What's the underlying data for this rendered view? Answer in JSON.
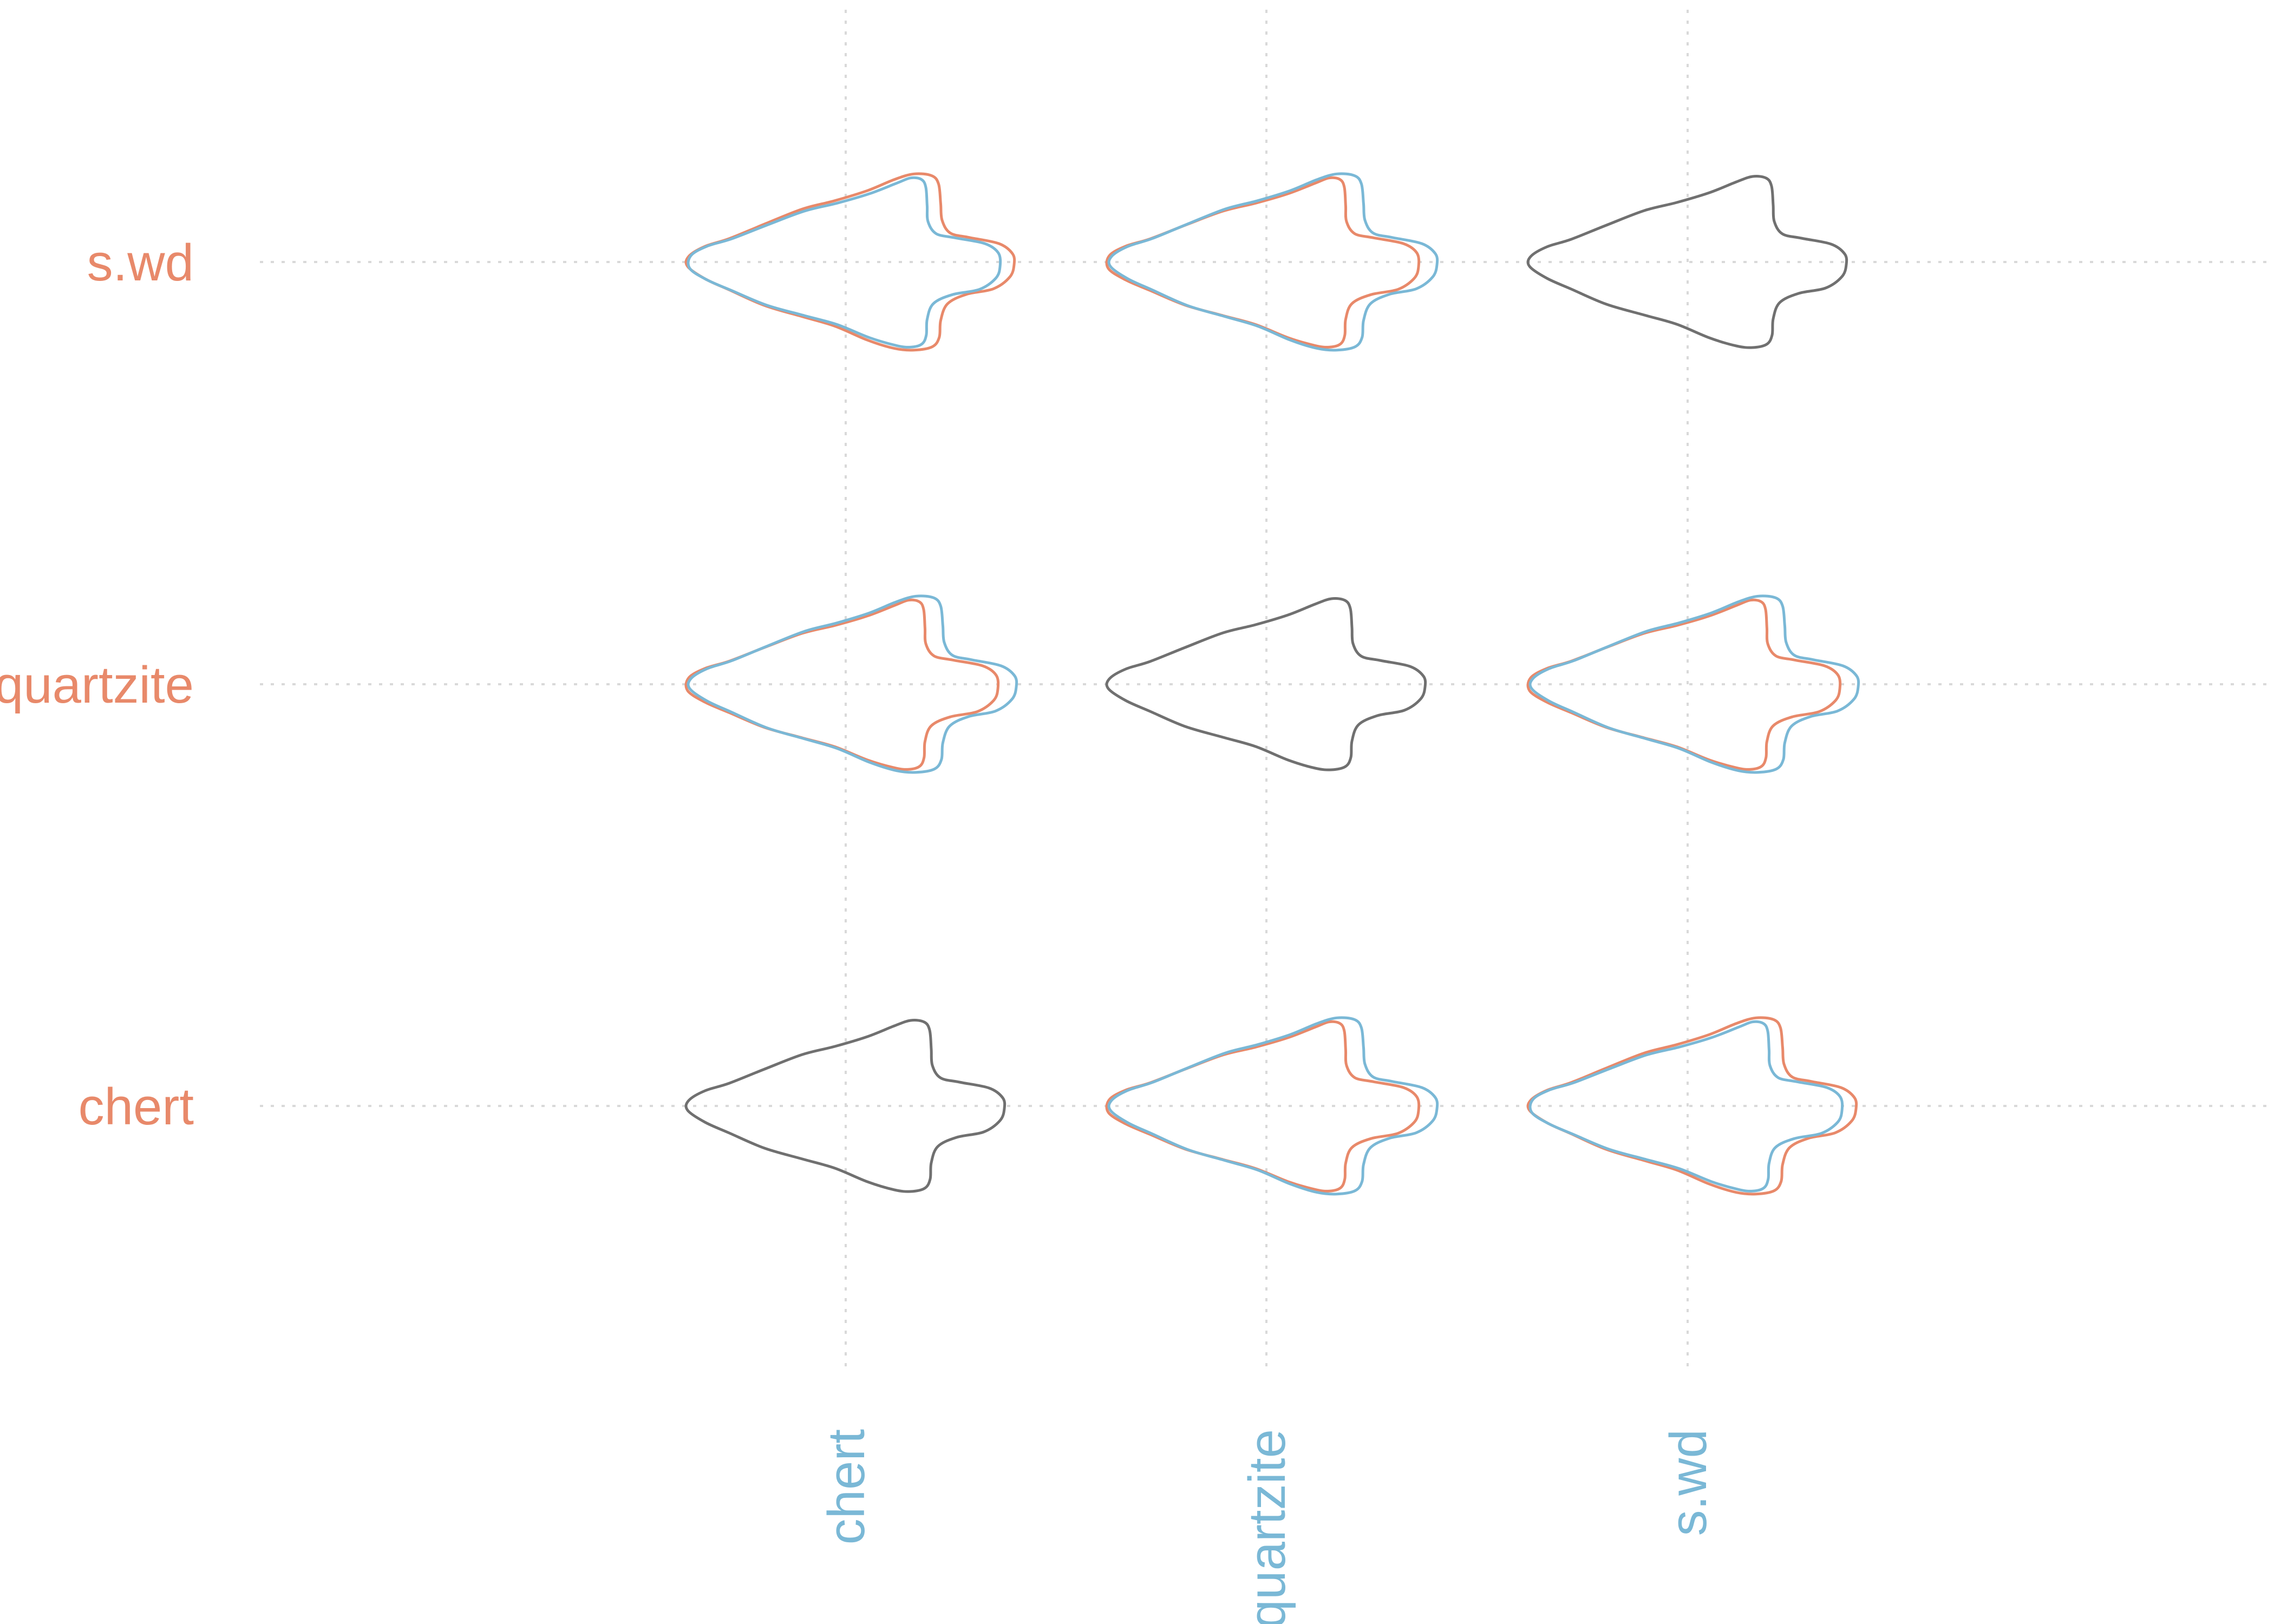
{
  "chart_data": {
    "type": "shape-comparison-matrix",
    "title": "",
    "row_categories": [
      "s.wd",
      "quartzite",
      "chert"
    ],
    "column_categories": [
      "chert",
      "quartzite",
      "s.wd"
    ],
    "grid": true,
    "cells": [
      {
        "row": "s.wd",
        "column": "chert",
        "outlines": [
          "row",
          "column"
        ]
      },
      {
        "row": "s.wd",
        "column": "quartzite",
        "outlines": [
          "row",
          "column"
        ]
      },
      {
        "row": "s.wd",
        "column": "s.wd",
        "outlines": [
          "mean"
        ]
      },
      {
        "row": "quartzite",
        "column": "chert",
        "outlines": [
          "row",
          "column"
        ]
      },
      {
        "row": "quartzite",
        "column": "quartzite",
        "outlines": [
          "mean"
        ]
      },
      {
        "row": "quartzite",
        "column": "s.wd",
        "outlines": [
          "row",
          "column"
        ]
      },
      {
        "row": "chert",
        "column": "chert",
        "outlines": [
          "mean"
        ]
      },
      {
        "row": "chert",
        "column": "quartzite",
        "outlines": [
          "row",
          "column"
        ]
      },
      {
        "row": "chert",
        "column": "s.wd",
        "outlines": [
          "row",
          "column"
        ]
      }
    ]
  },
  "colors": {
    "row_category": "#E8896A",
    "column_category": "#7AB8D6",
    "diagonal_outline": "#707070",
    "grid": "#d9d9d9"
  }
}
